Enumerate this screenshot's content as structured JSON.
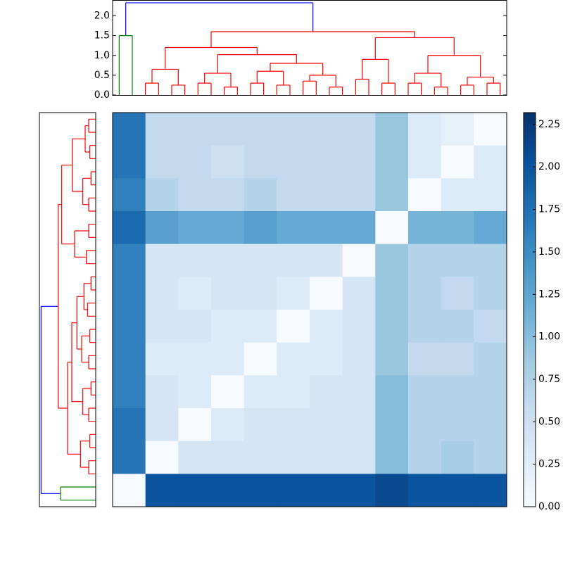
{
  "chart_data": [
    {
      "type": "dendrogram",
      "ylim": [
        0,
        2.4
      ],
      "yticks": [
        {
          "value": 0,
          "label": "0.0"
        },
        {
          "value": 0.5,
          "label": "0.5"
        },
        {
          "value": 1,
          "label": "1.0"
        },
        {
          "value": 1.5,
          "label": "1.5"
        },
        {
          "value": 2,
          "label": "2.0"
        }
      ],
      "tree": {
        "height": 2.33,
        "color": "#0000ff",
        "children": [
          {
            "height": 1.5,
            "color": "#008000"
          },
          {
            "height": 1.6,
            "color": "#ff0000",
            "children": [
              {
                "height": 1.2,
                "children": [
                  {
                    "height": 0.65,
                    "children": [
                      {
                        "height": 0.3
                      },
                      {
                        "height": 0.25
                      }
                    ]
                  },
                  {
                    "height": 1.02,
                    "children": [
                      {
                        "height": 0.55,
                        "children": [
                          {
                            "height": 0.3
                          },
                          {
                            "height": 0.2
                          }
                        ]
                      },
                      {
                        "height": 0.8,
                        "children": [
                          {
                            "height": 0.6,
                            "children": [
                              {
                                "height": 0.3
                              },
                              {
                                "height": 0.25
                              }
                            ]
                          },
                          {
                            "height": 0.5,
                            "children": [
                              {
                                "height": 0.35
                              },
                              {
                                "height": 0.2
                              }
                            ]
                          }
                        ]
                      }
                    ]
                  }
                ]
              },
              {
                "height": 1.45,
                "children": [
                  {
                    "height": 0.9,
                    "children": [
                      {
                        "height": 0.4
                      },
                      {
                        "height": 0.3
                      }
                    ]
                  },
                  {
                    "height": 1.0,
                    "children": [
                      {
                        "height": 0.55,
                        "children": [
                          {
                            "height": 0.3
                          },
                          {
                            "height": 0.2
                          }
                        ]
                      },
                      {
                        "height": 0.45,
                        "children": [
                          {
                            "height": 0.25
                          },
                          {
                            "height": 0.3
                          }
                        ]
                      }
                    ]
                  }
                ]
              }
            ]
          }
        ]
      }
    },
    {
      "type": "heatmap",
      "values": [
        [
          1.7,
          0.6,
          0.6,
          0.6,
          0.6,
          0.6,
          0.6,
          0.6,
          0.9,
          0.3,
          0.2,
          0
        ],
        [
          1.7,
          0.6,
          0.6,
          0.5,
          0.6,
          0.6,
          0.6,
          0.6,
          0.9,
          0.3,
          0,
          0.3
        ],
        [
          1.6,
          0.7,
          0.6,
          0.6,
          0.7,
          0.6,
          0.6,
          0.6,
          0.9,
          0,
          0.3,
          0.3
        ],
        [
          1.8,
          1.3,
          1.2,
          1.2,
          1.3,
          1.2,
          1.2,
          1.2,
          0,
          1.1,
          1.1,
          1.2
        ],
        [
          1.6,
          0.4,
          0.4,
          0.4,
          0.4,
          0.4,
          0.4,
          0,
          0.9,
          0.7,
          0.7,
          0.7
        ],
        [
          1.6,
          0.4,
          0.3,
          0.4,
          0.4,
          0.3,
          0,
          0.4,
          0.9,
          0.7,
          0.6,
          0.7
        ],
        [
          1.6,
          0.4,
          0.4,
          0.3,
          0.3,
          0,
          0.3,
          0.4,
          0.9,
          0.7,
          0.7,
          0.6
        ],
        [
          1.6,
          0.3,
          0.3,
          0.3,
          0,
          0.3,
          0.3,
          0.4,
          0.9,
          0.6,
          0.6,
          0.7
        ],
        [
          1.6,
          0.4,
          0.3,
          0,
          0.3,
          0.3,
          0.4,
          0.4,
          1.0,
          0.7,
          0.7,
          0.7
        ],
        [
          1.7,
          0.4,
          0,
          0.3,
          0.4,
          0.4,
          0.4,
          0.4,
          1.0,
          0.7,
          0.7,
          0.7
        ],
        [
          1.7,
          0,
          0.4,
          0.4,
          0.4,
          0.4,
          0.4,
          0.4,
          1.0,
          0.7,
          0.8,
          0.7
        ],
        [
          0,
          2.0,
          2.0,
          2.0,
          2.0,
          2.0,
          2.0,
          2.0,
          2.1,
          2.0,
          2.0,
          2.0
        ]
      ],
      "zlim": [
        0,
        2.32
      ],
      "cmap": [
        "#f7fbff",
        "#deebf7",
        "#c6dbef",
        "#9ecae1",
        "#6baed6",
        "#4292c6",
        "#2171b5",
        "#08519c",
        "#08306b"
      ],
      "cticks": [
        {
          "value": 0,
          "label": "0.00"
        },
        {
          "value": 0.25,
          "label": "0.25"
        },
        {
          "value": 0.5,
          "label": "0.50"
        },
        {
          "value": 0.75,
          "label": "0.75"
        },
        {
          "value": 1,
          "label": "1.00"
        },
        {
          "value": 1.25,
          "label": "1.25"
        },
        {
          "value": 1.5,
          "label": "1.50"
        },
        {
          "value": 1.75,
          "label": "1.75"
        },
        {
          "value": 2,
          "label": "2.00"
        },
        {
          "value": 2.25,
          "label": "2.25"
        }
      ]
    }
  ]
}
